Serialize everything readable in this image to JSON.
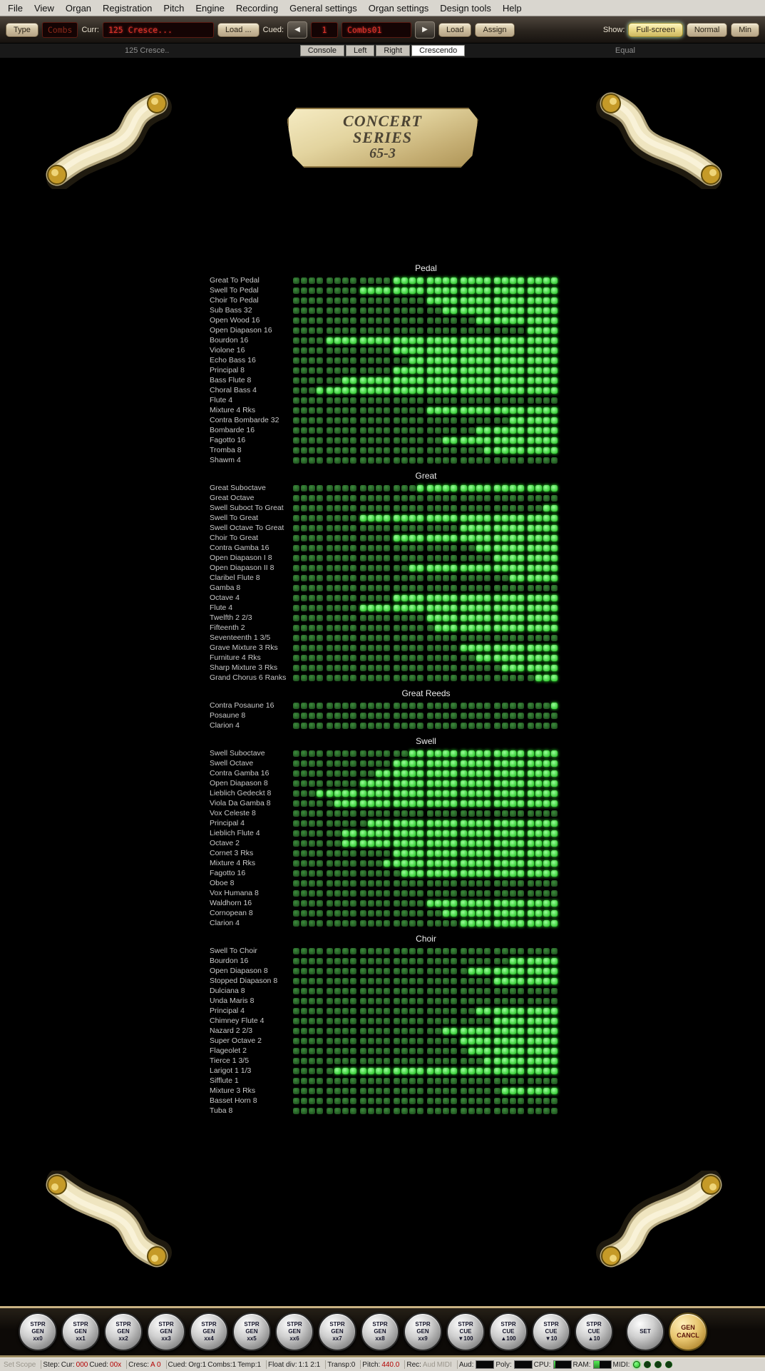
{
  "menu": {
    "items": [
      "File",
      "View",
      "Organ",
      "Registration",
      "Pitch",
      "Engine",
      "Recording",
      "General settings",
      "Organ settings",
      "Design tools",
      "Help"
    ]
  },
  "toolbar": {
    "type_label": "Type",
    "combs_display": "Combs",
    "curr_label": "Curr:",
    "curr_display": "125 Cresce...",
    "load_dots_label": "Load ...",
    "cued_label": "Cued:",
    "prev_icon": "◀",
    "next_icon": "▶",
    "cued_number": "1",
    "cued_display": "Combs01",
    "load_label": "Load",
    "assign_label": "Assign",
    "show_label": "Show:",
    "show_buttons": [
      "Full-screen",
      "Normal",
      "Min"
    ],
    "active_show": "Full-screen"
  },
  "tabbar": {
    "left_label": "125 Cresce..",
    "tabs": [
      "Console",
      "Left",
      "Right",
      "Crescendo"
    ],
    "active_tab": "Crescendo",
    "right_label": "Equal"
  },
  "plate": {
    "line1": "CONCERT",
    "line2": "SERIES",
    "line3": "65-3"
  },
  "chart_data": {
    "type": "heatmap",
    "title": "Crescendo stage map (bright cell = stop engaged at that stage; on_from = first engaged stage, 0 = never engaged)",
    "stages": 32,
    "colors": {
      "off": "#2e7a2e",
      "on": "#55ee55"
    },
    "sections": [
      {
        "name": "Pedal",
        "stops": [
          {
            "name": "Great To Pedal",
            "on_from": 13
          },
          {
            "name": "Swell To Pedal",
            "on_from": 9
          },
          {
            "name": "Choir To Pedal",
            "on_from": 17
          },
          {
            "name": "Sub Bass 32",
            "on_from": 19
          },
          {
            "name": "Open Wood 16",
            "on_from": 23
          },
          {
            "name": "Open Diapason 16",
            "on_from": 29
          },
          {
            "name": "Bourdon 16",
            "on_from": 5
          },
          {
            "name": "Violone 16",
            "on_from": 13
          },
          {
            "name": "Echo Bass 16",
            "on_from": 15
          },
          {
            "name": "Principal 8",
            "on_from": 13
          },
          {
            "name": "Bass Flute 8",
            "on_from": 7
          },
          {
            "name": "Choral Bass 4",
            "on_from": 4
          },
          {
            "name": "Flute 4",
            "on_from": 0
          },
          {
            "name": "Mixture 4 Rks",
            "on_from": 17
          },
          {
            "name": "Contra Bombarde 32",
            "on_from": 27
          },
          {
            "name": "Bombarde 16",
            "on_from": 23
          },
          {
            "name": "Fagotto 16",
            "on_from": 19
          },
          {
            "name": "Tromba 8",
            "on_from": 24
          },
          {
            "name": "Shawm 4",
            "on_from": 0
          }
        ]
      },
      {
        "name": "Great",
        "stops": [
          {
            "name": "Great Suboctave",
            "on_from": 16
          },
          {
            "name": "Great Octave",
            "on_from": 0
          },
          {
            "name": "Swell Suboct To Great",
            "on_from": 31
          },
          {
            "name": "Swell To Great",
            "on_from": 9
          },
          {
            "name": "Swell Octave To Great",
            "on_from": 21
          },
          {
            "name": "Choir To Great",
            "on_from": 13
          },
          {
            "name": "Contra Gamba 16",
            "on_from": 23
          },
          {
            "name": "Open Diapason I 8",
            "on_from": 25
          },
          {
            "name": "Open Diapason II 8",
            "on_from": 15
          },
          {
            "name": "Claribel Flute 8",
            "on_from": 27
          },
          {
            "name": "Gamba 8",
            "on_from": 0
          },
          {
            "name": "Octave 4",
            "on_from": 13
          },
          {
            "name": "Flute 4",
            "on_from": 9
          },
          {
            "name": "Twelfth 2 2/3",
            "on_from": 17
          },
          {
            "name": "Fifteenth 2",
            "on_from": 18
          },
          {
            "name": "Seventeenth 1 3/5",
            "on_from": 0
          },
          {
            "name": "Grave Mixture 3 Rks",
            "on_from": 21
          },
          {
            "name": "Furniture 4 Rks",
            "on_from": 23
          },
          {
            "name": "Sharp Mixture 3 Rks",
            "on_from": 26
          },
          {
            "name": "Grand Chorus 6 Ranks",
            "on_from": 30
          }
        ]
      },
      {
        "name": "Great Reeds",
        "stops": [
          {
            "name": "Contra Posaune 16",
            "on_from": 32
          },
          {
            "name": "Posaune 8",
            "on_from": 0
          },
          {
            "name": "Clarion 4",
            "on_from": 0
          }
        ]
      },
      {
        "name": "Swell",
        "stops": [
          {
            "name": "Swell Suboctave",
            "on_from": 15
          },
          {
            "name": "Swell Octave",
            "on_from": 13
          },
          {
            "name": "Contra Gamba 16",
            "on_from": 11
          },
          {
            "name": "Open Diapason 8",
            "on_from": 9
          },
          {
            "name": "Lieblich Gedeckt 8",
            "on_from": 4
          },
          {
            "name": "Viola Da Gamba 8",
            "on_from": 6
          },
          {
            "name": "Vox Celeste 8",
            "on_from": 0
          },
          {
            "name": "Principal 4",
            "on_from": 10
          },
          {
            "name": "Lieblich Flute 4",
            "on_from": 7
          },
          {
            "name": "Octave 2",
            "on_from": 7
          },
          {
            "name": "Cornet 3 Rks",
            "on_from": 13
          },
          {
            "name": "Mixture 4 Rks",
            "on_from": 12
          },
          {
            "name": "Fagotto 16",
            "on_from": 14
          },
          {
            "name": "Oboe 8",
            "on_from": 0
          },
          {
            "name": "Vox Humana 8",
            "on_from": 0
          },
          {
            "name": "Waldhorn 16",
            "on_from": 17
          },
          {
            "name": "Cornopean 8",
            "on_from": 19
          },
          {
            "name": "Clarion 4",
            "on_from": 21
          }
        ]
      },
      {
        "name": "Choir",
        "stops": [
          {
            "name": "Swell To Choir",
            "on_from": 0
          },
          {
            "name": "Bourdon 16",
            "on_from": 27
          },
          {
            "name": "Open Diapason 8",
            "on_from": 22
          },
          {
            "name": "Stopped Diapason 8",
            "on_from": 25
          },
          {
            "name": "Dulciana 8",
            "on_from": 0
          },
          {
            "name": "Unda Maris 8",
            "on_from": 0
          },
          {
            "name": "Principal 4",
            "on_from": 23
          },
          {
            "name": "Chimney Flute 4",
            "on_from": 25
          },
          {
            "name": "Nazard 2 2/3",
            "on_from": 19
          },
          {
            "name": "Super Octave 2",
            "on_from": 21
          },
          {
            "name": "Flageolet 2",
            "on_from": 22
          },
          {
            "name": "Tierce 1 3/5",
            "on_from": 24
          },
          {
            "name": "Larigot 1 1/3",
            "on_from": 6
          },
          {
            "name": "Sifflute 1",
            "on_from": 0
          },
          {
            "name": "Mixture 3 Rks",
            "on_from": 26
          },
          {
            "name": "Basset Horn 8",
            "on_from": 0
          },
          {
            "name": "Tuba 8",
            "on_from": 0
          }
        ]
      }
    ]
  },
  "pistons": {
    "buttons": [
      {
        "lines": [
          "STPR",
          "GEN",
          "xx0"
        ]
      },
      {
        "lines": [
          "STPR",
          "GEN",
          "xx1"
        ]
      },
      {
        "lines": [
          "STPR",
          "GEN",
          "xx2"
        ]
      },
      {
        "lines": [
          "STPR",
          "GEN",
          "xx3"
        ]
      },
      {
        "lines": [
          "STPR",
          "GEN",
          "xx4"
        ]
      },
      {
        "lines": [
          "STPR",
          "GEN",
          "xx5"
        ]
      },
      {
        "lines": [
          "STPR",
          "GEN",
          "xx6"
        ]
      },
      {
        "lines": [
          "STPR",
          "GEN",
          "xx7"
        ]
      },
      {
        "lines": [
          "STPR",
          "GEN",
          "xx8"
        ]
      },
      {
        "lines": [
          "STPR",
          "GEN",
          "xx9"
        ]
      },
      {
        "lines": [
          "STPR",
          "CUE",
          "▼100"
        ]
      },
      {
        "lines": [
          "STPR",
          "CUE",
          "▲100"
        ]
      },
      {
        "lines": [
          "STPR",
          "CUE",
          "▼10"
        ]
      },
      {
        "lines": [
          "STPR",
          "CUE",
          "▲10"
        ]
      },
      {
        "lines": [
          "SET"
        ],
        "gap": true
      },
      {
        "lines": [
          "GEN",
          "CANCL"
        ],
        "accent": true
      }
    ]
  },
  "statusbar": {
    "set_label": "Set",
    "scope_label": "Scope",
    "step_label": "Step:",
    "cur_label": "Cur:",
    "cur_value": "000",
    "cued_label": "Cued:",
    "cued_value": "00x",
    "cresc_label": "Cresc:",
    "cresc_value": "A 0",
    "cued_group_label": "Cued:",
    "org_value": "Org:1",
    "combs_value": "Combs:1",
    "temp_value": "Temp:1",
    "floatdiv_label": "Float div:",
    "floatdiv_value": "1:1 2:1",
    "transp_value": "Transp:0",
    "pitch_label": "Pitch:",
    "pitch_value": "440.0",
    "rec_label": "Rec:",
    "rec_aud": "Aud",
    "rec_midi": "MIDI",
    "aud_label": "Aud:",
    "poly_label": "Poly:",
    "cpu_label": "CPU:",
    "ram_label": "RAM:",
    "midi_label": "MIDI:",
    "meters": {
      "aud": 0,
      "poly": 0,
      "cpu": 10,
      "ram": 35
    },
    "midi_leds": [
      "on",
      "off",
      "off",
      "off"
    ]
  }
}
